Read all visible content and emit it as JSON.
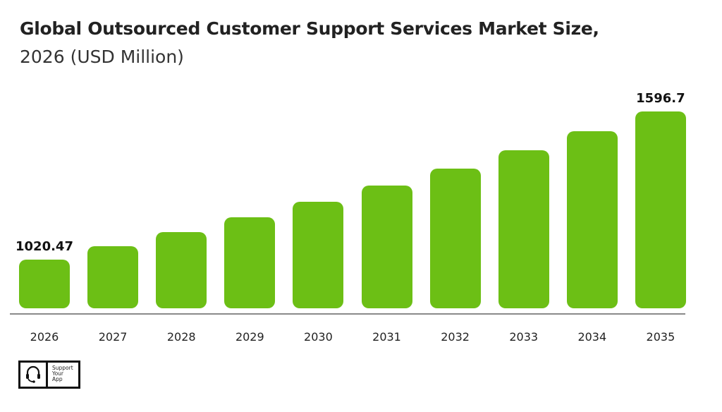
{
  "header": {
    "title": "Global Outsourced Customer Support Services Market Size,",
    "subtitle": "2026 (USD Million)"
  },
  "logo": {
    "text": "Support\nYour\nApp",
    "icon": "headset-icon"
  },
  "colors": {
    "bar": "#6cbf15",
    "axis": "#8a8a8a",
    "text": "#222222"
  },
  "chart_data": {
    "type": "bar",
    "title": "Global Outsourced Customer Support Services Market Size, 2026 (USD Million)",
    "xlabel": "",
    "ylabel": "USD Million",
    "categories": [
      "2026",
      "2027",
      "2028",
      "2029",
      "2030",
      "2031",
      "2032",
      "2033",
      "2034",
      "2035"
    ],
    "values": [
      1020.47,
      1072.5,
      1127.2,
      1184.7,
      1245.1,
      1308.6,
      1375.4,
      1445.5,
      1519.2,
      1596.7
    ],
    "data_labels": {
      "0": "1020.47",
      "9": "1596.7"
    },
    "grid": false,
    "legend": null
  }
}
